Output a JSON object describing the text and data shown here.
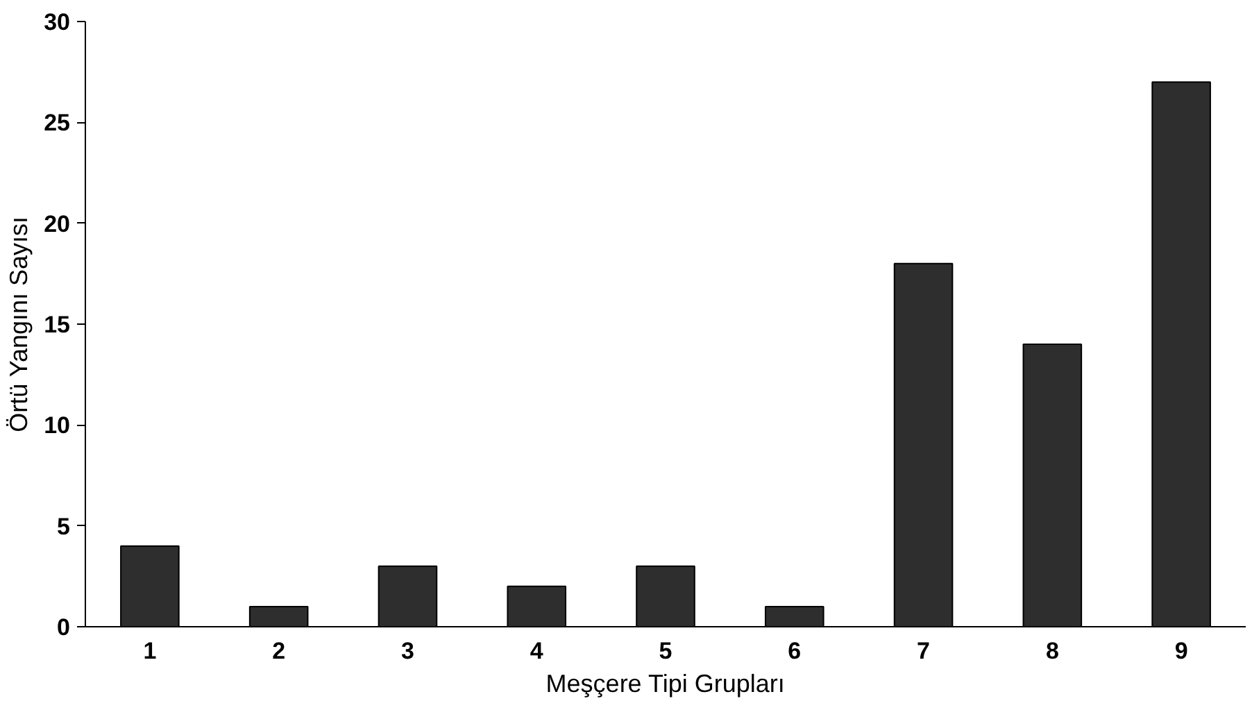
{
  "chart_data": {
    "type": "bar",
    "xlabel": "Meşçere Tipi Grupları",
    "ylabel": "Örtü Yangını Sayısı",
    "categories": [
      "1",
      "2",
      "3",
      "4",
      "5",
      "6",
      "7",
      "8",
      "9"
    ],
    "values": [
      4,
      1,
      3,
      2,
      3,
      1,
      18,
      14,
      27
    ],
    "color": "#2e2e2e",
    "ylim": [
      0,
      30
    ],
    "yticks": [
      0,
      5,
      10,
      15,
      20,
      25,
      30
    ],
    "grid": false
  }
}
